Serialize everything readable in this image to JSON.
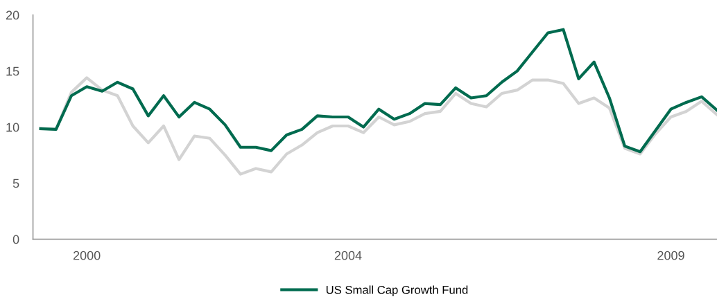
{
  "chart_data": {
    "type": "line",
    "categories": [
      null,
      null,
      null,
      "2000",
      null,
      null,
      null,
      null,
      null,
      null,
      null,
      null,
      null,
      null,
      null,
      null,
      null,
      null,
      null,
      null,
      "2004",
      null,
      null,
      null,
      null,
      null,
      null,
      null,
      null,
      null,
      null,
      null,
      null,
      null,
      null,
      null,
      null,
      null,
      null,
      null,
      null,
      "2009",
      null,
      null,
      null
    ],
    "ylim": [
      0,
      20
    ],
    "yticks": [
      0,
      5,
      10,
      15,
      20
    ],
    "grid": false,
    "legend": "bottom",
    "marker": "none",
    "line_style": "solid",
    "series": [
      {
        "color": "#d3d3d3",
        "values": [
          9.9,
          9.8,
          13.1,
          14.4,
          13.3,
          12.8,
          10.1,
          8.6,
          10.1,
          7.1,
          9.2,
          9.0,
          7.5,
          5.8,
          6.3,
          6.0,
          7.6,
          8.4,
          9.5,
          10.1,
          10.1,
          9.5,
          10.9,
          10.2,
          10.5,
          11.2,
          11.4,
          13.0,
          12.1,
          11.8,
          13.0,
          13.3,
          14.2,
          14.2,
          13.9,
          12.1,
          12.6,
          11.7,
          8.1,
          7.6,
          9.4,
          10.9,
          11.4,
          12.3,
          11.1
        ]
      },
      {
        "name": "US Small Cap Growth Fund",
        "color": "#006b4f",
        "values": [
          9.85,
          9.8,
          12.8,
          13.6,
          13.2,
          14.0,
          13.4,
          11.0,
          12.8,
          10.9,
          12.2,
          11.6,
          10.2,
          8.2,
          8.2,
          7.9,
          9.3,
          9.8,
          11.0,
          10.9,
          10.9,
          10.0,
          11.6,
          10.7,
          11.2,
          12.1,
          12.0,
          13.5,
          12.6,
          12.8,
          14.0,
          15.0,
          16.7,
          18.4,
          18.7,
          14.3,
          15.8,
          12.6,
          8.3,
          7.8,
          9.7,
          11.6,
          12.2,
          12.7,
          11.5
        ]
      }
    ]
  }
}
